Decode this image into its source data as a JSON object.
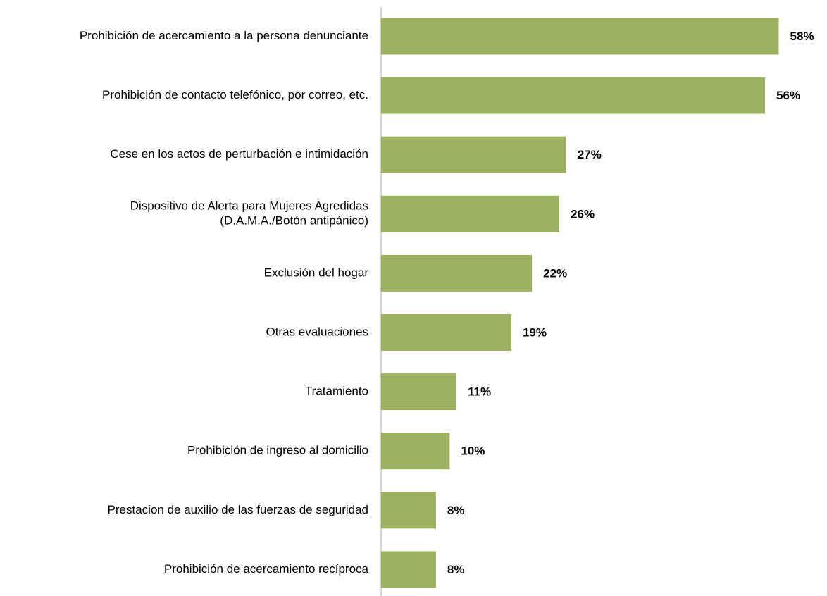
{
  "chart_data": {
    "type": "bar",
    "orientation": "horizontal",
    "categories": [
      "Prohibición de acercamiento a la persona denunciante",
      "Prohibición de contacto telefónico, por correo, etc.",
      "Cese en los actos de perturbación e intimidación",
      "Dispositivo de Alerta para Mujeres Agredidas\n(D.A.M.A./Botón antipánico)",
      "Exclusión del hogar",
      "Otras evaluaciones",
      "Tratamiento",
      "Prohibición de ingreso al domicilio",
      "Prestacion de auxilio de las fuerzas de seguridad",
      "Prohibición de acercamiento recíproca"
    ],
    "values": [
      58,
      56,
      27,
      26,
      22,
      19,
      11,
      10,
      8,
      8
    ],
    "value_labels": [
      "58%",
      "56%",
      "27%",
      "26%",
      "22%",
      "19%",
      "11%",
      "10%",
      "8%",
      "8%"
    ],
    "color": "#9bb160",
    "xlim": [
      0,
      60
    ]
  }
}
